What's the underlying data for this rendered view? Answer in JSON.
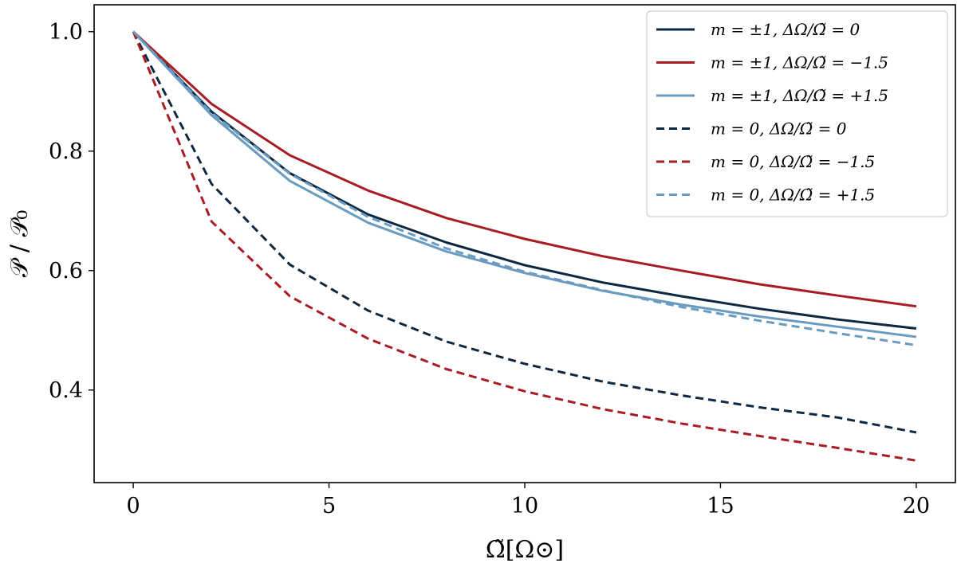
{
  "chart_data": {
    "type": "line",
    "title": "",
    "xlabel": "Ω̃[Ω⊙]",
    "ylabel": "𝒫 / 𝒫₀",
    "xlim": [
      -1,
      21
    ],
    "ylim": [
      0.245,
      1.045
    ],
    "xticks": [
      0,
      5,
      10,
      15,
      20
    ],
    "xtick_labels": [
      "0",
      "5",
      "10",
      "15",
      "20"
    ],
    "yticks": [
      0.4,
      0.6,
      0.8,
      1.0
    ],
    "ytick_labels": [
      "0.4",
      "0.6",
      "0.8",
      "1.0"
    ],
    "grid": false,
    "legend_position": "top-right",
    "x": [
      0,
      2,
      4,
      6,
      8,
      10,
      12,
      14,
      16,
      18,
      20
    ],
    "series": [
      {
        "name": "m = ±1, ΔΩ/Ω̃ = 0",
        "color": "#0e2841",
        "dash": "solid",
        "values": [
          1.0,
          0.866,
          0.763,
          0.694,
          0.647,
          0.609,
          0.58,
          0.557,
          0.536,
          0.518,
          0.503
        ]
      },
      {
        "name": "m = ±1, ΔΩ/Ω̃ = −1.5",
        "color": "#a81c24",
        "dash": "solid",
        "values": [
          1.0,
          0.879,
          0.793,
          0.734,
          0.688,
          0.653,
          0.624,
          0.6,
          0.577,
          0.558,
          0.54
        ]
      },
      {
        "name": "m = ±1, ΔΩ/Ω̃ = +1.5",
        "color": "#6a9cc1",
        "dash": "solid",
        "values": [
          1.0,
          0.86,
          0.75,
          0.68,
          0.632,
          0.596,
          0.566,
          0.543,
          0.523,
          0.506,
          0.489
        ]
      },
      {
        "name": "m = 0, ΔΩ/Ω̃ = 0",
        "color": "#0e2841",
        "dash": "dashed",
        "values": [
          1.0,
          0.745,
          0.61,
          0.533,
          0.481,
          0.444,
          0.414,
          0.391,
          0.371,
          0.354,
          0.329
        ]
      },
      {
        "name": "m = 0, ΔΩ/Ω̃ = −1.5",
        "color": "#a81c24",
        "dash": "dashed",
        "values": [
          1.0,
          0.682,
          0.557,
          0.486,
          0.435,
          0.398,
          0.368,
          0.344,
          0.323,
          0.303,
          0.282
        ]
      },
      {
        "name": "m = 0, ΔΩ/Ω̃ = +1.5",
        "color": "#6a9cc1",
        "dash": "dashed",
        "values": [
          1.0,
          0.864,
          0.762,
          0.69,
          0.637,
          0.598,
          0.567,
          0.539,
          0.516,
          0.495,
          0.475
        ]
      }
    ]
  }
}
